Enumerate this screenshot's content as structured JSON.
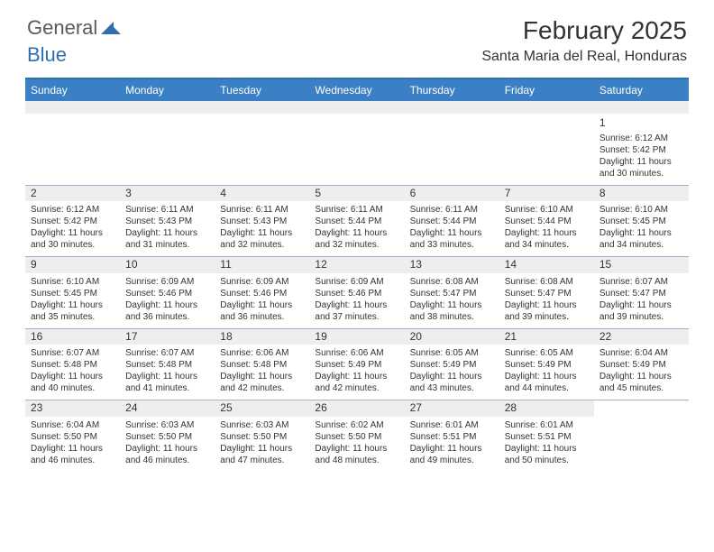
{
  "logo": {
    "general": "General",
    "blue": "Blue"
  },
  "title": "February 2025",
  "location": "Santa Maria del Real, Honduras",
  "dayNames": [
    "Sunday",
    "Monday",
    "Tuesday",
    "Wednesday",
    "Thursday",
    "Friday",
    "Saturday"
  ],
  "colors": {
    "headerBar": "#3b7fc4",
    "topRule": "#2f6fb0",
    "weekRule": "#9bb4cc",
    "altRow": "#eeeeee",
    "logoBlue": "#2f6fb0",
    "text": "#333333"
  },
  "weeks": [
    [
      null,
      null,
      null,
      null,
      null,
      null,
      {
        "n": "1",
        "sunrise": "6:12 AM",
        "sunset": "5:42 PM",
        "dh": "11",
        "dm": "30"
      }
    ],
    [
      {
        "n": "2",
        "sunrise": "6:12 AM",
        "sunset": "5:42 PM",
        "dh": "11",
        "dm": "30"
      },
      {
        "n": "3",
        "sunrise": "6:11 AM",
        "sunset": "5:43 PM",
        "dh": "11",
        "dm": "31"
      },
      {
        "n": "4",
        "sunrise": "6:11 AM",
        "sunset": "5:43 PM",
        "dh": "11",
        "dm": "32"
      },
      {
        "n": "5",
        "sunrise": "6:11 AM",
        "sunset": "5:44 PM",
        "dh": "11",
        "dm": "32"
      },
      {
        "n": "6",
        "sunrise": "6:11 AM",
        "sunset": "5:44 PM",
        "dh": "11",
        "dm": "33"
      },
      {
        "n": "7",
        "sunrise": "6:10 AM",
        "sunset": "5:44 PM",
        "dh": "11",
        "dm": "34"
      },
      {
        "n": "8",
        "sunrise": "6:10 AM",
        "sunset": "5:45 PM",
        "dh": "11",
        "dm": "34"
      }
    ],
    [
      {
        "n": "9",
        "sunrise": "6:10 AM",
        "sunset": "5:45 PM",
        "dh": "11",
        "dm": "35"
      },
      {
        "n": "10",
        "sunrise": "6:09 AM",
        "sunset": "5:46 PM",
        "dh": "11",
        "dm": "36"
      },
      {
        "n": "11",
        "sunrise": "6:09 AM",
        "sunset": "5:46 PM",
        "dh": "11",
        "dm": "36"
      },
      {
        "n": "12",
        "sunrise": "6:09 AM",
        "sunset": "5:46 PM",
        "dh": "11",
        "dm": "37"
      },
      {
        "n": "13",
        "sunrise": "6:08 AM",
        "sunset": "5:47 PM",
        "dh": "11",
        "dm": "38"
      },
      {
        "n": "14",
        "sunrise": "6:08 AM",
        "sunset": "5:47 PM",
        "dh": "11",
        "dm": "39"
      },
      {
        "n": "15",
        "sunrise": "6:07 AM",
        "sunset": "5:47 PM",
        "dh": "11",
        "dm": "39"
      }
    ],
    [
      {
        "n": "16",
        "sunrise": "6:07 AM",
        "sunset": "5:48 PM",
        "dh": "11",
        "dm": "40"
      },
      {
        "n": "17",
        "sunrise": "6:07 AM",
        "sunset": "5:48 PM",
        "dh": "11",
        "dm": "41"
      },
      {
        "n": "18",
        "sunrise": "6:06 AM",
        "sunset": "5:48 PM",
        "dh": "11",
        "dm": "42"
      },
      {
        "n": "19",
        "sunrise": "6:06 AM",
        "sunset": "5:49 PM",
        "dh": "11",
        "dm": "42"
      },
      {
        "n": "20",
        "sunrise": "6:05 AM",
        "sunset": "5:49 PM",
        "dh": "11",
        "dm": "43"
      },
      {
        "n": "21",
        "sunrise": "6:05 AM",
        "sunset": "5:49 PM",
        "dh": "11",
        "dm": "44"
      },
      {
        "n": "22",
        "sunrise": "6:04 AM",
        "sunset": "5:49 PM",
        "dh": "11",
        "dm": "45"
      }
    ],
    [
      {
        "n": "23",
        "sunrise": "6:04 AM",
        "sunset": "5:50 PM",
        "dh": "11",
        "dm": "46"
      },
      {
        "n": "24",
        "sunrise": "6:03 AM",
        "sunset": "5:50 PM",
        "dh": "11",
        "dm": "46"
      },
      {
        "n": "25",
        "sunrise": "6:03 AM",
        "sunset": "5:50 PM",
        "dh": "11",
        "dm": "47"
      },
      {
        "n": "26",
        "sunrise": "6:02 AM",
        "sunset": "5:50 PM",
        "dh": "11",
        "dm": "48"
      },
      {
        "n": "27",
        "sunrise": "6:01 AM",
        "sunset": "5:51 PM",
        "dh": "11",
        "dm": "49"
      },
      {
        "n": "28",
        "sunrise": "6:01 AM",
        "sunset": "5:51 PM",
        "dh": "11",
        "dm": "50"
      },
      null
    ]
  ],
  "labels": {
    "sunrise": "Sunrise:",
    "sunset": "Sunset:",
    "daylightA": "Daylight:",
    "hours": "hours",
    "and": "and",
    "minutes": "minutes."
  }
}
